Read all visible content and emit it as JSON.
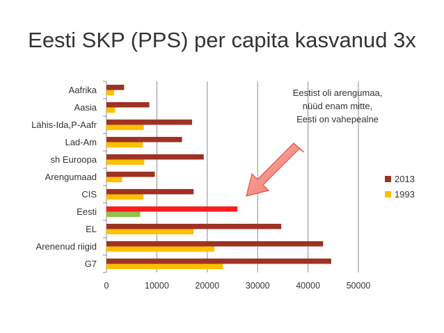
{
  "slide": {
    "title": "Eesti SKP (PPS) per capita kasvanud 3x"
  },
  "chart_data": {
    "type": "bar",
    "orientation": "horizontal",
    "categories": [
      "Aafrika",
      "Aasia",
      "Lähis-Ida,P-Aafr",
      "Lad-Am",
      "sh Euroopa",
      "Arengumaad",
      "CIS",
      "Eesti",
      "EL",
      "Arenenud riigid",
      "G7"
    ],
    "series": [
      {
        "name": "2013",
        "color": "#9E3223",
        "values": [
          3500,
          8500,
          17000,
          15000,
          19300,
          9600,
          17300,
          26000,
          34700,
          43000,
          44600
        ]
      },
      {
        "name": "1993",
        "color": "#FFC000",
        "values": [
          1500,
          1700,
          7400,
          7200,
          7500,
          3100,
          7300,
          6700,
          17300,
          21400,
          23100
        ]
      }
    ],
    "highlight": {
      "category": "Eesti",
      "colors": {
        "2013": "#FF1C1C",
        "1993": "#8DC34F"
      }
    },
    "xlim": [
      0,
      50000
    ],
    "xticks": [
      0,
      10000,
      20000,
      30000,
      40000,
      50000
    ],
    "xlabel": "",
    "ylabel": "",
    "grid": true,
    "legend_position": "right",
    "annotation": {
      "lines": [
        "Eestist oli arengumaa,",
        "nüüd enam mitte,",
        "Eesti on vahepealne"
      ],
      "arrow": "pointing down-left toward Eesti bar",
      "arrow_color": "#F08A7E"
    }
  }
}
